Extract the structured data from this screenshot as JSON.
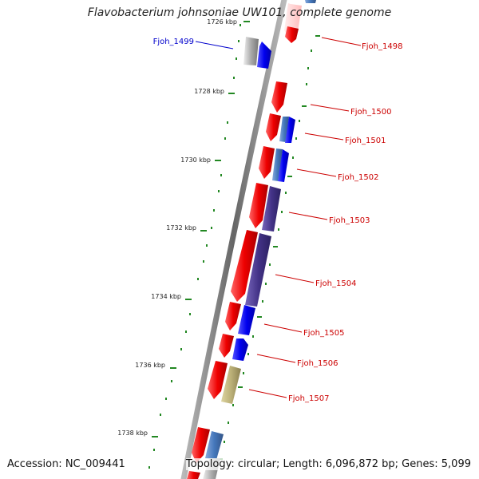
{
  "title": "Flavobacterium johnsoniae UW101, complete genome",
  "footer": {
    "accession": "Accession: NC_009441",
    "summary": "Topology: circular; Length: 6,096,872 bp; Genes: 5,099"
  },
  "ticks": [
    {
      "label": "1726 kbp"
    },
    {
      "label": "1728 kbp"
    },
    {
      "label": "1730 kbp"
    },
    {
      "label": "1732 kbp"
    },
    {
      "label": "1734 kbp"
    },
    {
      "label": "1736 kbp"
    },
    {
      "label": "1738 kbp"
    }
  ],
  "genes": [
    {
      "label": "Fjoh_1499",
      "color": "#0000cc",
      "side": "left"
    },
    {
      "label": "Fjoh_1498",
      "color": "#cc0000",
      "side": "right"
    },
    {
      "label": "Fjoh_1500",
      "color": "#cc0000",
      "side": "right"
    },
    {
      "label": "Fjoh_1501",
      "color": "#cc0000",
      "side": "right"
    },
    {
      "label": "Fjoh_1502",
      "color": "#cc0000",
      "side": "right"
    },
    {
      "label": "Fjoh_1503",
      "color": "#cc0000",
      "side": "right"
    },
    {
      "label": "Fjoh_1504",
      "color": "#cc0000",
      "side": "right"
    },
    {
      "label": "Fjoh_1505",
      "color": "#cc0000",
      "side": "right"
    },
    {
      "label": "Fjoh_1506",
      "color": "#cc0000",
      "side": "right"
    },
    {
      "label": "Fjoh_1507",
      "color": "#cc0000",
      "side": "right"
    }
  ],
  "colors": {
    "forward_cds": "#ee0000",
    "reverse_cds": "#0000ee",
    "reverse_steel": "#4477bb",
    "reverse_purple": "#443388",
    "reverse_khaki": "#bbb077",
    "reverse_gray": "#aaaaaa",
    "backbone": "#777777",
    "tick_marks": "#228822"
  }
}
